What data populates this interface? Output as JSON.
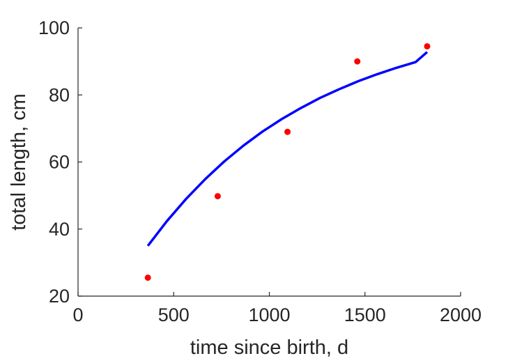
{
  "chart_data": {
    "type": "scatter",
    "title": "",
    "xlabel": "time since birth, d",
    "ylabel": "total length, cm",
    "xlim": [
      0,
      2000
    ],
    "ylim": [
      20,
      100
    ],
    "xticks": [
      0,
      500,
      1000,
      1500,
      2000
    ],
    "yticks": [
      20,
      40,
      60,
      80,
      100
    ],
    "grid": false,
    "legend": "none",
    "series": [
      {
        "type": "scatter",
        "color": "#ff0000",
        "x": [
          365,
          730,
          1095,
          1460,
          1825
        ],
        "y": [
          25.5,
          49.8,
          69.0,
          90.0,
          94.5
        ]
      },
      {
        "type": "line",
        "color": "#0000ff",
        "x": [
          365,
          465,
          565,
          665,
          765,
          865,
          965,
          1065,
          1165,
          1265,
          1365,
          1465,
          1565,
          1665,
          1765,
          1825
        ],
        "y": [
          35.0,
          42.4,
          49.0,
          54.9,
          60.2,
          64.9,
          69.1,
          72.8,
          76.1,
          79.1,
          81.7,
          84.1,
          86.2,
          88.1,
          89.8,
          92.8
        ]
      }
    ]
  }
}
